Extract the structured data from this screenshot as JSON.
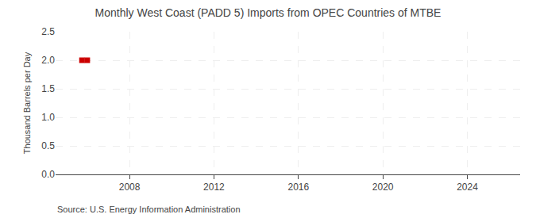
{
  "chart_data": {
    "type": "scatter",
    "title": "Monthly West Coast (PADD 5) Imports from OPEC Countries of MTBE",
    "ylabel": "Thousand Barrels per Day",
    "annotations": [
      "Source: U.S. Energy Information Administration"
    ],
    "x": [
      2005.75,
      2006.0
    ],
    "values": [
      2.0,
      2.0
    ],
    "color": "#cc0000",
    "marker": "square",
    "xlim": [
      2004.5,
      2026.5
    ],
    "xticks": [
      2008,
      2012,
      2016,
      2020,
      2024
    ],
    "ylim": [
      0.0,
      2.5
    ],
    "yticks": [
      {
        "value": 0.0,
        "label": "0.0"
      },
      0.5,
      {
        "value": 1.0,
        "label": "1.0"
      },
      1.5,
      {
        "value": 2.0,
        "label": "2.0"
      },
      2.5
    ],
    "grid": true
  }
}
